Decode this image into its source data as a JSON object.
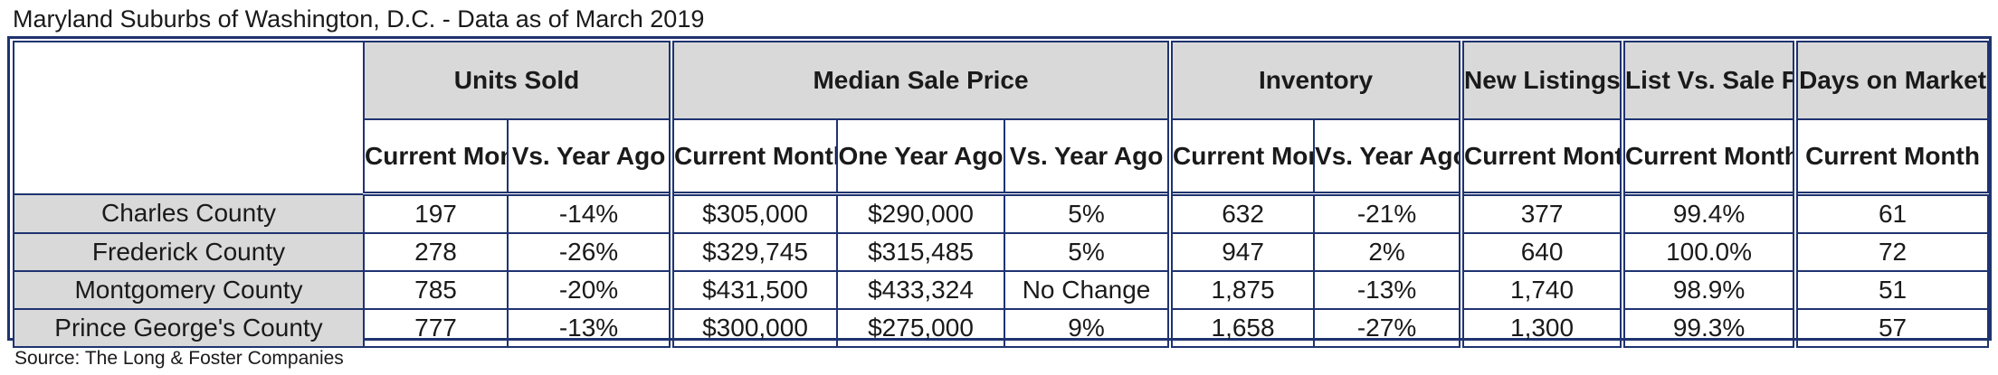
{
  "title": "Maryland Suburbs of Washington, D.C. - Data as of March 2019",
  "source": "Source: The Long & Foster Companies",
  "colors": {
    "border": "#1f3370",
    "header_fill": "#d9d9d9",
    "cell_fill": "#ffffff"
  },
  "groups": {
    "units_sold": "Units Sold",
    "median_sale_price": "Median Sale Price",
    "inventory": "Inventory",
    "new_listings": "New Listings",
    "list_vs_sale": "List Vs. Sale Price",
    "days_on_market": "Days on Market"
  },
  "subheaders": {
    "current_month": "Current Month",
    "vs_year_ago": "Vs. Year Ago",
    "one_year_ago": "One Year Ago"
  },
  "rows": [
    {
      "county": "Charles County",
      "units_current": "197",
      "units_vs": "-14%",
      "price_current": "$305,000",
      "price_year_ago": "$290,000",
      "price_vs": "5%",
      "inv_current": "632",
      "inv_vs": "-21%",
      "new_listings": "377",
      "list_vs_sale": "99.4%",
      "days_on_market": "61"
    },
    {
      "county": "Frederick County",
      "units_current": "278",
      "units_vs": "-26%",
      "price_current": "$329,745",
      "price_year_ago": "$315,485",
      "price_vs": "5%",
      "inv_current": "947",
      "inv_vs": "2%",
      "new_listings": "640",
      "list_vs_sale": "100.0%",
      "days_on_market": "72"
    },
    {
      "county": "Montgomery County",
      "units_current": "785",
      "units_vs": "-20%",
      "price_current": "$431,500",
      "price_year_ago": "$433,324",
      "price_vs": "No Change",
      "inv_current": "1,875",
      "inv_vs": "-13%",
      "new_listings": "1,740",
      "list_vs_sale": "98.9%",
      "days_on_market": "51"
    },
    {
      "county": "Prince George's County",
      "units_current": "777",
      "units_vs": "-13%",
      "price_current": "$300,000",
      "price_year_ago": "$275,000",
      "price_vs": "9%",
      "inv_current": "1,658",
      "inv_vs": "-27%",
      "new_listings": "1,300",
      "list_vs_sale": "99.3%",
      "days_on_market": "57"
    }
  ]
}
